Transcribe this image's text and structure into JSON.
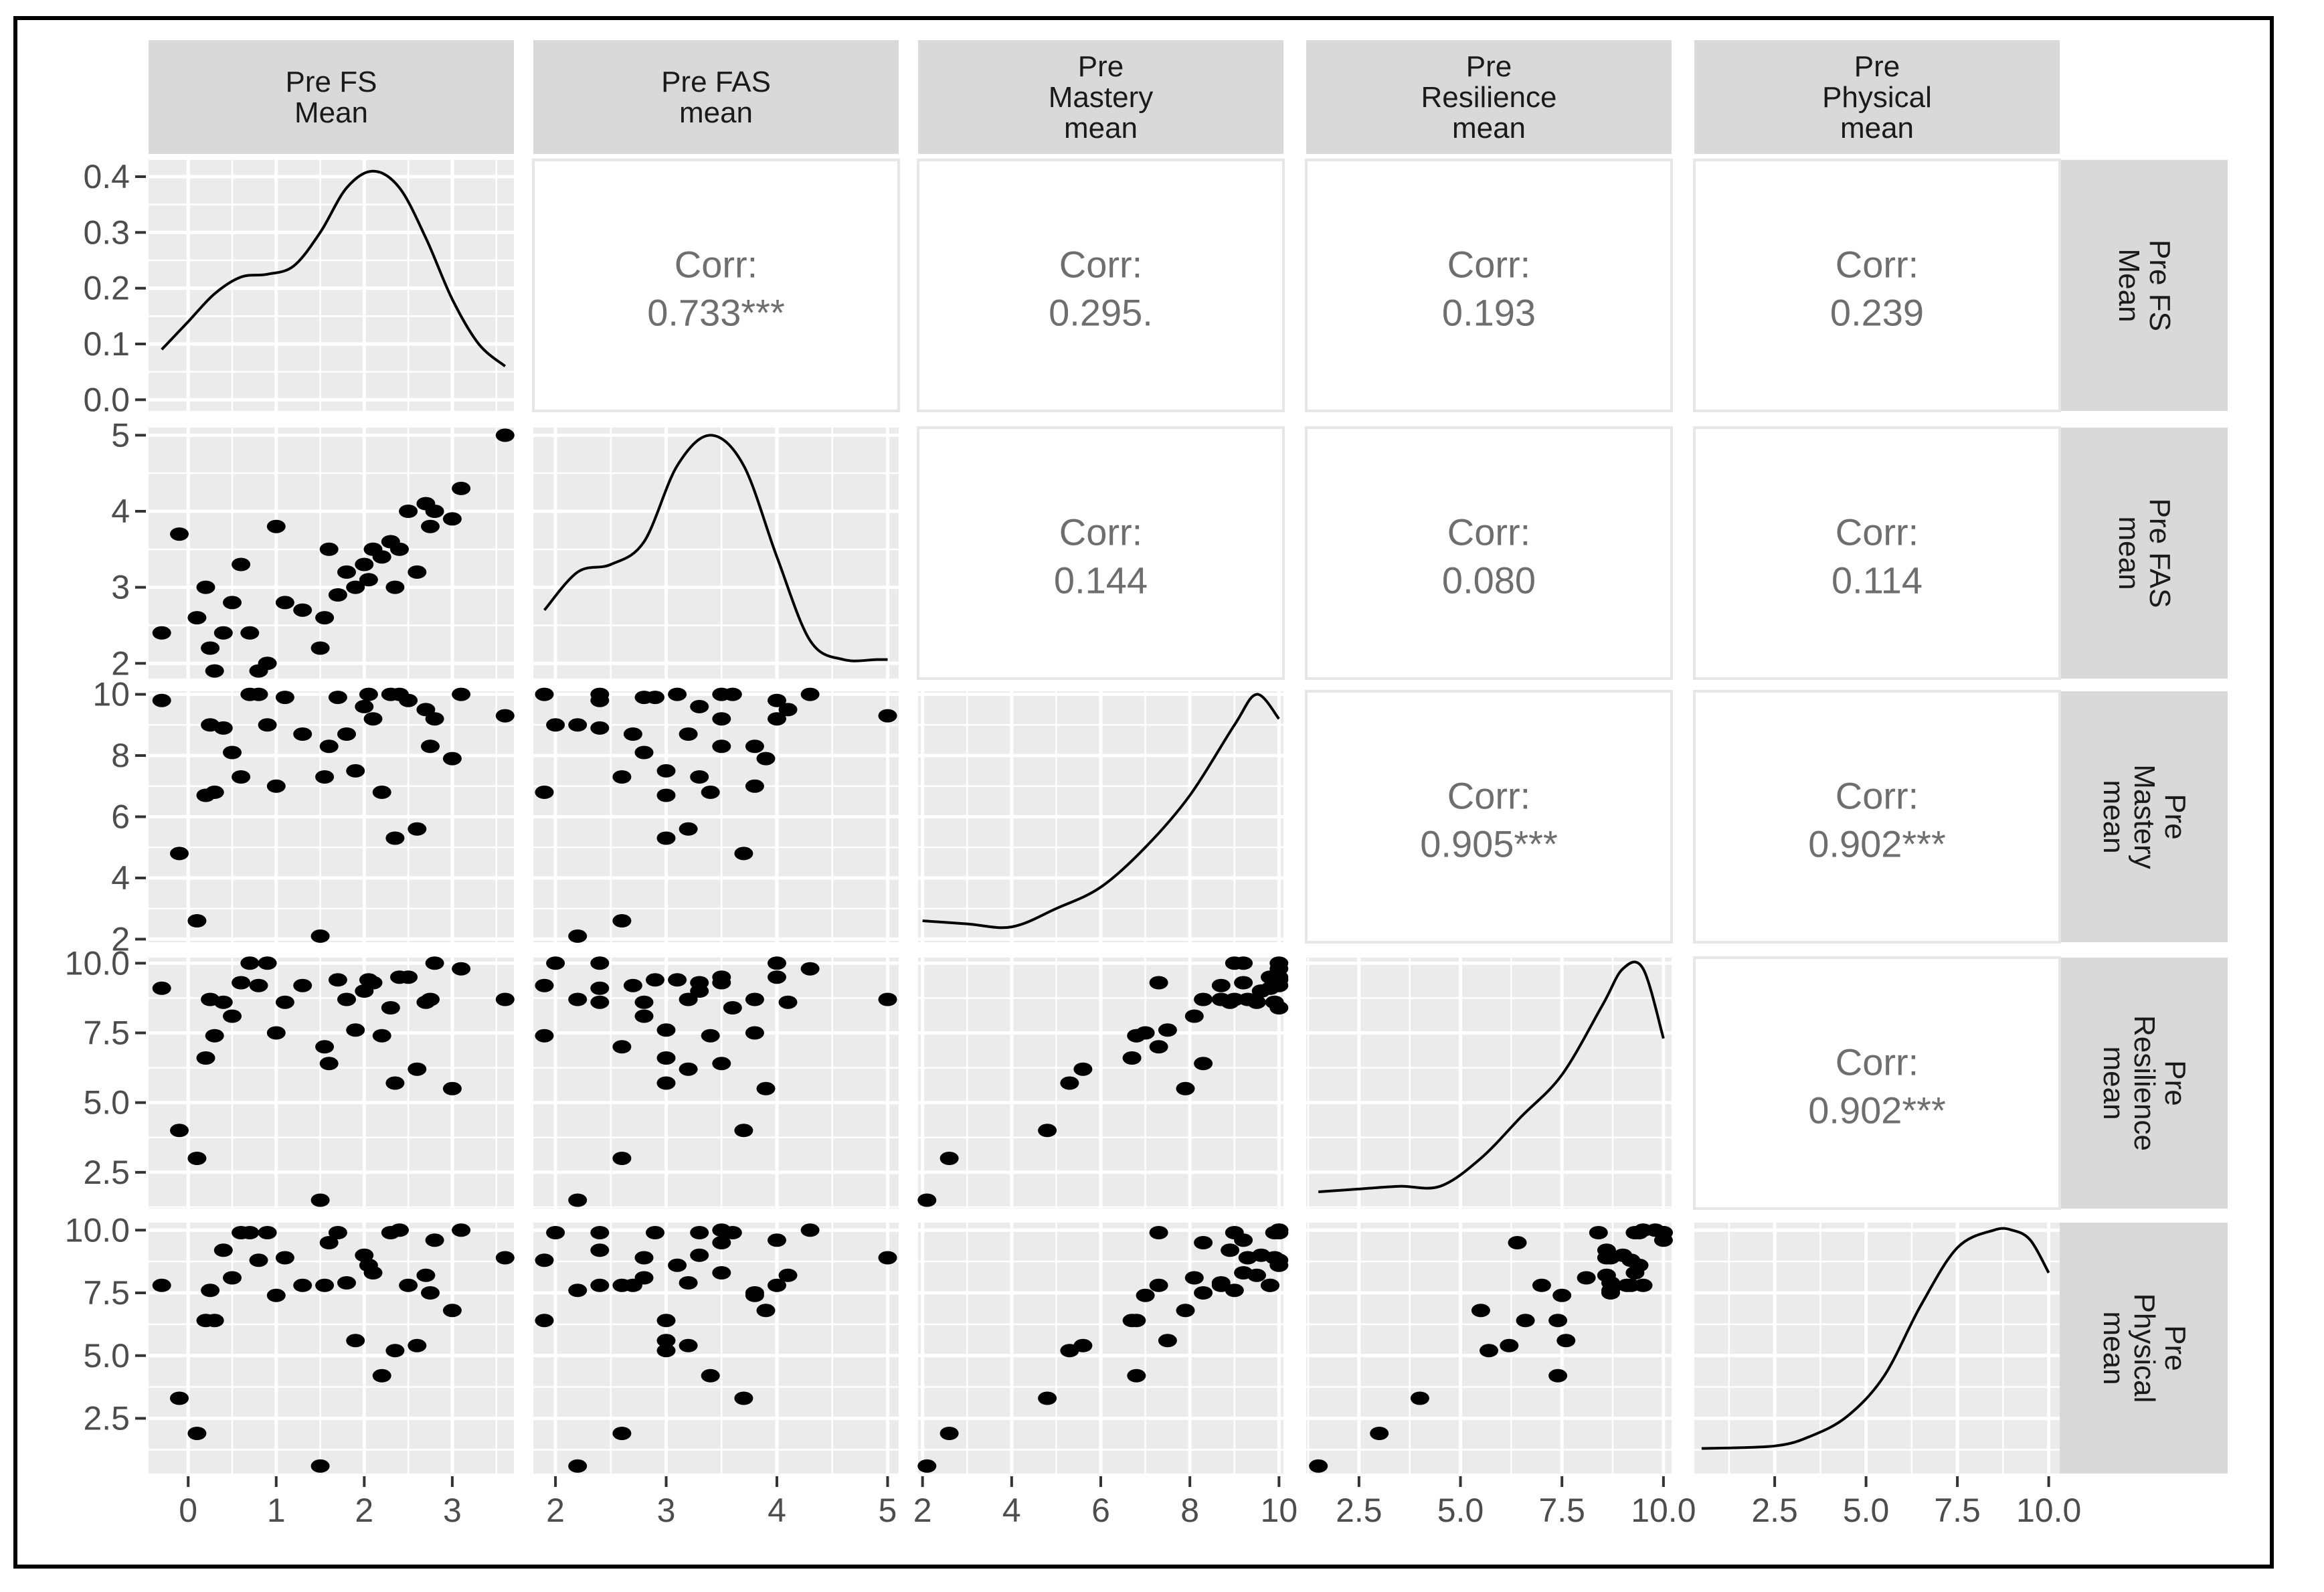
{
  "chart_data": {
    "type": "scatter-matrix",
    "variables": [
      "Pre FS Mean",
      "Pre FAS mean",
      "Pre Mastery mean",
      "Pre Resilience mean",
      "Pre Physical mean"
    ],
    "column_strips": [
      [
        "Pre FS",
        "Mean"
      ],
      [
        "Pre FAS",
        "mean"
      ],
      [
        "Pre",
        "Mastery",
        "mean"
      ],
      [
        "Pre",
        "Resilience",
        "mean"
      ],
      [
        "Pre",
        "Physical",
        "mean"
      ]
    ],
    "row_strips": [
      [
        "Pre FS",
        "Mean"
      ],
      [
        "Pre FAS",
        "mean"
      ],
      [
        "Pre",
        "Mastery",
        "mean"
      ],
      [
        "Pre",
        "Resilience",
        "mean"
      ],
      [
        "Pre",
        "Physical",
        "mean"
      ]
    ],
    "x_ranges": [
      [
        -0.45,
        3.7
      ],
      [
        1.8,
        5.1
      ],
      [
        1.9,
        10.1
      ],
      [
        1.2,
        10.2
      ],
      [
        0.3,
        10.3
      ]
    ],
    "y_ranges": [
      [
        -0.02,
        0.43
      ],
      [
        1.8,
        5.1
      ],
      [
        1.9,
        10.1
      ],
      [
        1.2,
        10.2
      ],
      [
        0.3,
        10.3
      ]
    ],
    "x_ticks": [
      [
        "0",
        "1",
        "2",
        "3"
      ],
      [
        "2",
        "3",
        "4",
        "5"
      ],
      [
        "2",
        "4",
        "6",
        "8",
        "10"
      ],
      [
        "2.5",
        "5.0",
        "7.5",
        "10.0"
      ],
      [
        "2.5",
        "5.0",
        "7.5",
        "10.0"
      ]
    ],
    "x_tick_values": [
      [
        0,
        1,
        2,
        3
      ],
      [
        2,
        3,
        4,
        5
      ],
      [
        2,
        4,
        6,
        8,
        10
      ],
      [
        2.5,
        5,
        7.5,
        10
      ],
      [
        2.5,
        5,
        7.5,
        10
      ]
    ],
    "y_ticks": [
      [
        "0.0",
        "0.1",
        "0.2",
        "0.3",
        "0.4"
      ],
      [
        "2",
        "3",
        "4",
        "5"
      ],
      [
        "2",
        "4",
        "6",
        "8",
        "10"
      ],
      [
        "2.5",
        "5.0",
        "7.5",
        "10.0"
      ],
      [
        "2.5",
        "5.0",
        "7.5",
        "10.0"
      ]
    ],
    "y_tick_values": [
      [
        0,
        0.1,
        0.2,
        0.3,
        0.4
      ],
      [
        2,
        3,
        4,
        5
      ],
      [
        2,
        4,
        6,
        8,
        10
      ],
      [
        2.5,
        5,
        7.5,
        10
      ],
      [
        2.5,
        5,
        7.5,
        10
      ]
    ],
    "correlations": [
      {
        "row": 0,
        "col": 1,
        "label": "Corr:",
        "value": "0.733***"
      },
      {
        "row": 0,
        "col": 2,
        "label": "Corr:",
        "value": "0.295."
      },
      {
        "row": 0,
        "col": 3,
        "label": "Corr:",
        "value": "0.193"
      },
      {
        "row": 0,
        "col": 4,
        "label": "Corr:",
        "value": "0.239"
      },
      {
        "row": 1,
        "col": 2,
        "label": "Corr:",
        "value": "0.144"
      },
      {
        "row": 1,
        "col": 3,
        "label": "Corr:",
        "value": "0.080"
      },
      {
        "row": 1,
        "col": 4,
        "label": "Corr:",
        "value": "0.114"
      },
      {
        "row": 2,
        "col": 3,
        "label": "Corr:",
        "value": "0.905***"
      },
      {
        "row": 2,
        "col": 4,
        "label": "Corr:",
        "value": "0.902***"
      },
      {
        "row": 3,
        "col": 4,
        "label": "Corr:",
        "value": "0.902***"
      }
    ],
    "densities": [
      {
        "var": 0,
        "x": [
          -0.3,
          0,
          0.3,
          0.6,
          0.9,
          1.2,
          1.5,
          1.8,
          2.1,
          2.4,
          2.7,
          3.0,
          3.3,
          3.6
        ],
        "y": [
          0.09,
          0.14,
          0.19,
          0.22,
          0.225,
          0.24,
          0.3,
          0.38,
          0.41,
          0.38,
          0.29,
          0.18,
          0.1,
          0.06
        ]
      },
      {
        "var": 1,
        "x": [
          1.9,
          2.2,
          2.5,
          2.8,
          3.1,
          3.4,
          3.7,
          4.0,
          4.3,
          4.6,
          4.9,
          5.0
        ],
        "y": [
          2.7,
          3.2,
          3.3,
          3.6,
          4.6,
          5.0,
          4.6,
          3.4,
          2.3,
          2.05,
          2.05,
          2.05
        ]
      },
      {
        "var": 2,
        "x": [
          2,
          3,
          4,
          5,
          6,
          7,
          8,
          9,
          9.5,
          10
        ],
        "y": [
          2.6,
          2.5,
          2.4,
          3.0,
          3.7,
          5.0,
          6.7,
          9.0,
          10.0,
          9.2
        ]
      },
      {
        "var": 3,
        "x": [
          1.5,
          2.5,
          3.5,
          4.5,
          5.5,
          6.5,
          7.5,
          8.5,
          9.0,
          9.5,
          10.0
        ],
        "y": [
          1.8,
          1.9,
          2.0,
          2.0,
          3.0,
          4.5,
          6.0,
          8.5,
          9.8,
          9.8,
          7.3
        ]
      },
      {
        "var": 4,
        "x": [
          0.5,
          2.5,
          3.5,
          4.5,
          5.5,
          6.5,
          7.5,
          8.5,
          9.0,
          9.5,
          10.0
        ],
        "y": [
          1.3,
          1.4,
          1.8,
          2.6,
          4.2,
          7.0,
          9.3,
          10.0,
          10.0,
          9.6,
          8.3
        ]
      }
    ],
    "observations": [
      [
        -0.3,
        2.4,
        9.8,
        9.1,
        7.8
      ],
      [
        -0.1,
        3.7,
        4.8,
        4.0,
        3.3
      ],
      [
        0.1,
        2.6,
        2.6,
        3.0,
        1.9
      ],
      [
        0.2,
        3.0,
        6.7,
        6.6,
        6.4
      ],
      [
        0.25,
        2.2,
        9.0,
        8.7,
        7.6
      ],
      [
        0.3,
        1.9,
        6.8,
        7.4,
        6.4
      ],
      [
        0.4,
        2.4,
        8.9,
        8.6,
        9.2
      ],
      [
        0.5,
        2.8,
        8.1,
        8.1,
        8.1
      ],
      [
        0.6,
        3.3,
        7.3,
        9.3,
        9.9
      ],
      [
        0.7,
        2.4,
        10.0,
        10.0,
        9.9
      ],
      [
        0.8,
        1.9,
        10.0,
        9.2,
        8.8
      ],
      [
        0.9,
        2.0,
        9.0,
        10.0,
        9.9
      ],
      [
        1.0,
        3.8,
        7.0,
        7.5,
        7.4
      ],
      [
        1.1,
        2.8,
        9.9,
        8.6,
        8.9
      ],
      [
        1.3,
        2.7,
        8.7,
        9.2,
        7.8
      ],
      [
        1.5,
        2.2,
        2.1,
        1.5,
        0.6
      ],
      [
        1.55,
        2.6,
        7.3,
        7.0,
        7.8
      ],
      [
        1.6,
        3.5,
        8.3,
        6.4,
        9.5
      ],
      [
        1.7,
        2.9,
        9.9,
        9.4,
        9.9
      ],
      [
        1.8,
        3.2,
        8.7,
        8.7,
        7.9
      ],
      [
        1.9,
        3.0,
        7.5,
        7.6,
        5.6
      ],
      [
        2.0,
        3.3,
        9.6,
        9.0,
        9.0
      ],
      [
        2.05,
        3.1,
        10.0,
        9.4,
        8.6
      ],
      [
        2.1,
        3.5,
        9.2,
        9.3,
        8.3
      ],
      [
        2.2,
        3.4,
        6.8,
        7.4,
        4.2
      ],
      [
        2.3,
        3.6,
        10.0,
        8.4,
        9.9
      ],
      [
        2.35,
        3.0,
        5.3,
        5.7,
        5.2
      ],
      [
        2.4,
        3.5,
        10.0,
        9.5,
        10.0
      ],
      [
        2.5,
        4.0,
        9.8,
        9.5,
        7.8
      ],
      [
        2.6,
        3.2,
        5.6,
        6.2,
        5.4
      ],
      [
        2.7,
        4.1,
        9.5,
        8.6,
        8.2
      ],
      [
        2.75,
        3.8,
        8.3,
        8.7,
        7.5
      ],
      [
        2.8,
        4.0,
        9.2,
        10.0,
        9.6
      ],
      [
        3.0,
        3.9,
        7.9,
        5.5,
        6.8
      ],
      [
        3.1,
        4.3,
        10.0,
        9.8,
        10.0
      ],
      [
        3.6,
        5.0,
        9.3,
        8.7,
        8.9
      ]
    ]
  }
}
